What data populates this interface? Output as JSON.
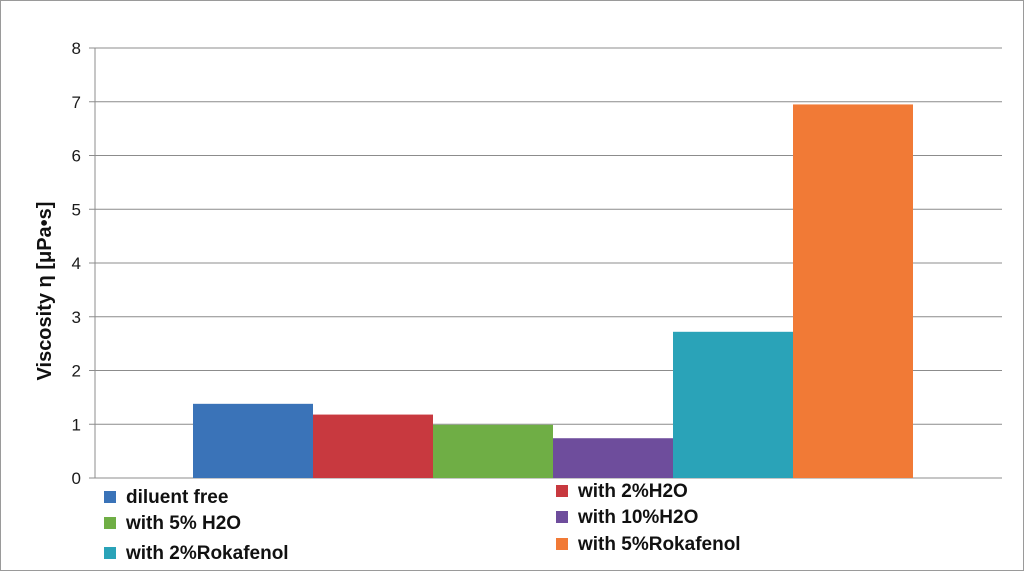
{
  "chart_data": {
    "type": "bar",
    "title": "",
    "xlabel": "",
    "ylabel": "Viscosity η [μPa•s]",
    "ylim": [
      0,
      8
    ],
    "yticks": [
      0,
      1,
      2,
      3,
      4,
      5,
      6,
      7,
      8
    ],
    "grid": true,
    "legend_position": "bottom",
    "series": [
      {
        "name": "diluent free",
        "value": 1.38,
        "color": "#3a73b8"
      },
      {
        "name": "with 2%H2O",
        "value": 1.18,
        "color": "#c8393f"
      },
      {
        "name": "with 5% H2O",
        "value": 0.99,
        "color": "#6fae45"
      },
      {
        "name": "with 10%H2O",
        "value": 0.74,
        "color": "#6e4d9c"
      },
      {
        "name": "with 2%Rokafenol",
        "value": 2.72,
        "color": "#2aa3b8"
      },
      {
        "name": "with 5%Rokafenol",
        "value": 6.95,
        "color": "#f17a36"
      }
    ]
  }
}
